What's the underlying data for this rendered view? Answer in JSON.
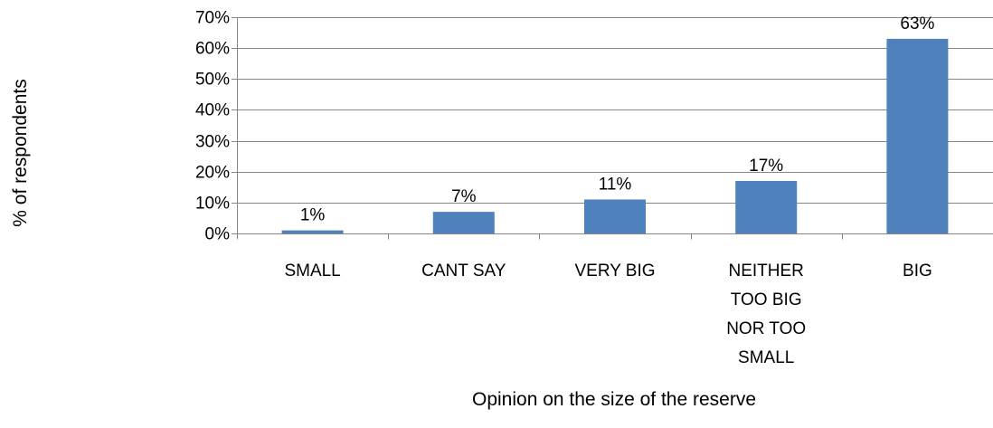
{
  "chart_data": {
    "type": "bar",
    "categories": [
      [
        "SMALL"
      ],
      [
        "CANT SAY"
      ],
      [
        "VERY BIG"
      ],
      [
        "NEITHER",
        "TOO BIG",
        "NOR TOO",
        "SMALL"
      ],
      [
        "BIG"
      ]
    ],
    "values": [
      1,
      7,
      11,
      17,
      63
    ],
    "data_labels": [
      "1%",
      "7%",
      "11%",
      "17%",
      "63%"
    ],
    "title": "",
    "xlabel": "Opinion on the size of the reserve",
    "ylabel": "% of respondents",
    "ylim": [
      0,
      70
    ],
    "yticks": [
      0,
      10,
      20,
      30,
      40,
      50,
      60,
      70
    ],
    "ytick_labels": [
      "0%",
      "10%",
      "20%",
      "30%",
      "40%",
      "50%",
      "60%",
      "70%"
    ],
    "grid": true,
    "legend": "none",
    "bar_color": "#4F81BD",
    "grid_color": "#868686"
  }
}
